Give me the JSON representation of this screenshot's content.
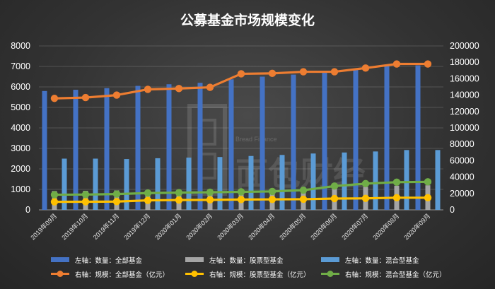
{
  "chart_data": {
    "type": "bar",
    "title": "公募基金市场规模变化",
    "categories": [
      "2019年09月",
      "2019年10月",
      "2019年11月",
      "2019年12月",
      "2020年01月",
      "2020年02月",
      "2020年03月",
      "2020年04月",
      "2020年05月",
      "2020年06月",
      "2020年07月",
      "2020年08月",
      "2020年09月"
    ],
    "left_axis": {
      "ylim": [
        0,
        8000
      ],
      "ticks": [
        "0",
        "1000",
        "2000",
        "3000",
        "4000",
        "5000",
        "6000",
        "7000",
        "8000"
      ]
    },
    "right_axis": {
      "ylim": [
        0,
        200000
      ],
      "ticks": [
        "0",
        "20000",
        "40000",
        "60000",
        "80000",
        "100000",
        "120000",
        "140000",
        "160000",
        "180000",
        "200000"
      ]
    },
    "grid": true,
    "legend_position": "bottom",
    "bar_series": [
      {
        "name": "左轴：数量：全部基金",
        "color": "#4472C4",
        "values": [
          5800,
          5860,
          5940,
          6050,
          6130,
          6200,
          6370,
          6500,
          6600,
          6720,
          6870,
          7020,
          7050
        ]
      },
      {
        "name": "左轴：数量：股票型基金",
        "color": "#A5A5A5",
        "values": [
          920,
          930,
          950,
          960,
          980,
          1000,
          1010,
          1030,
          1050,
          1080,
          1120,
          1180,
          1200
        ]
      },
      {
        "name": "左轴：数量：混合型基金",
        "color": "#5B9BD5",
        "values": [
          2500,
          2500,
          2480,
          2520,
          2550,
          2580,
          2630,
          2680,
          2750,
          2800,
          2850,
          2920,
          2920
        ]
      }
    ],
    "line_series": [
      {
        "name": "右轴：规模：全部基金（亿元）",
        "color": "#ED7D31",
        "values": [
          136000,
          137000,
          140000,
          147000,
          148000,
          149500,
          166000,
          166500,
          168500,
          168500,
          173000,
          178000,
          178000
        ]
      },
      {
        "name": "右轴：规模：股票型基金（亿元）",
        "color": "#FFC000",
        "values": [
          9800,
          9900,
          10100,
          11600,
          12000,
          12200,
          12600,
          12800,
          13000,
          13800,
          14000,
          14800,
          14800
        ]
      },
      {
        "name": "右轴：规模：混合型基金（亿元）",
        "color": "#70AD47",
        "values": [
          18500,
          18700,
          19300,
          20500,
          21000,
          21500,
          22000,
          22500,
          24000,
          29000,
          32000,
          33800,
          34200
        ]
      }
    ]
  },
  "watermark": {
    "line1": "Bread Finance",
    "line2": "面包财经"
  }
}
